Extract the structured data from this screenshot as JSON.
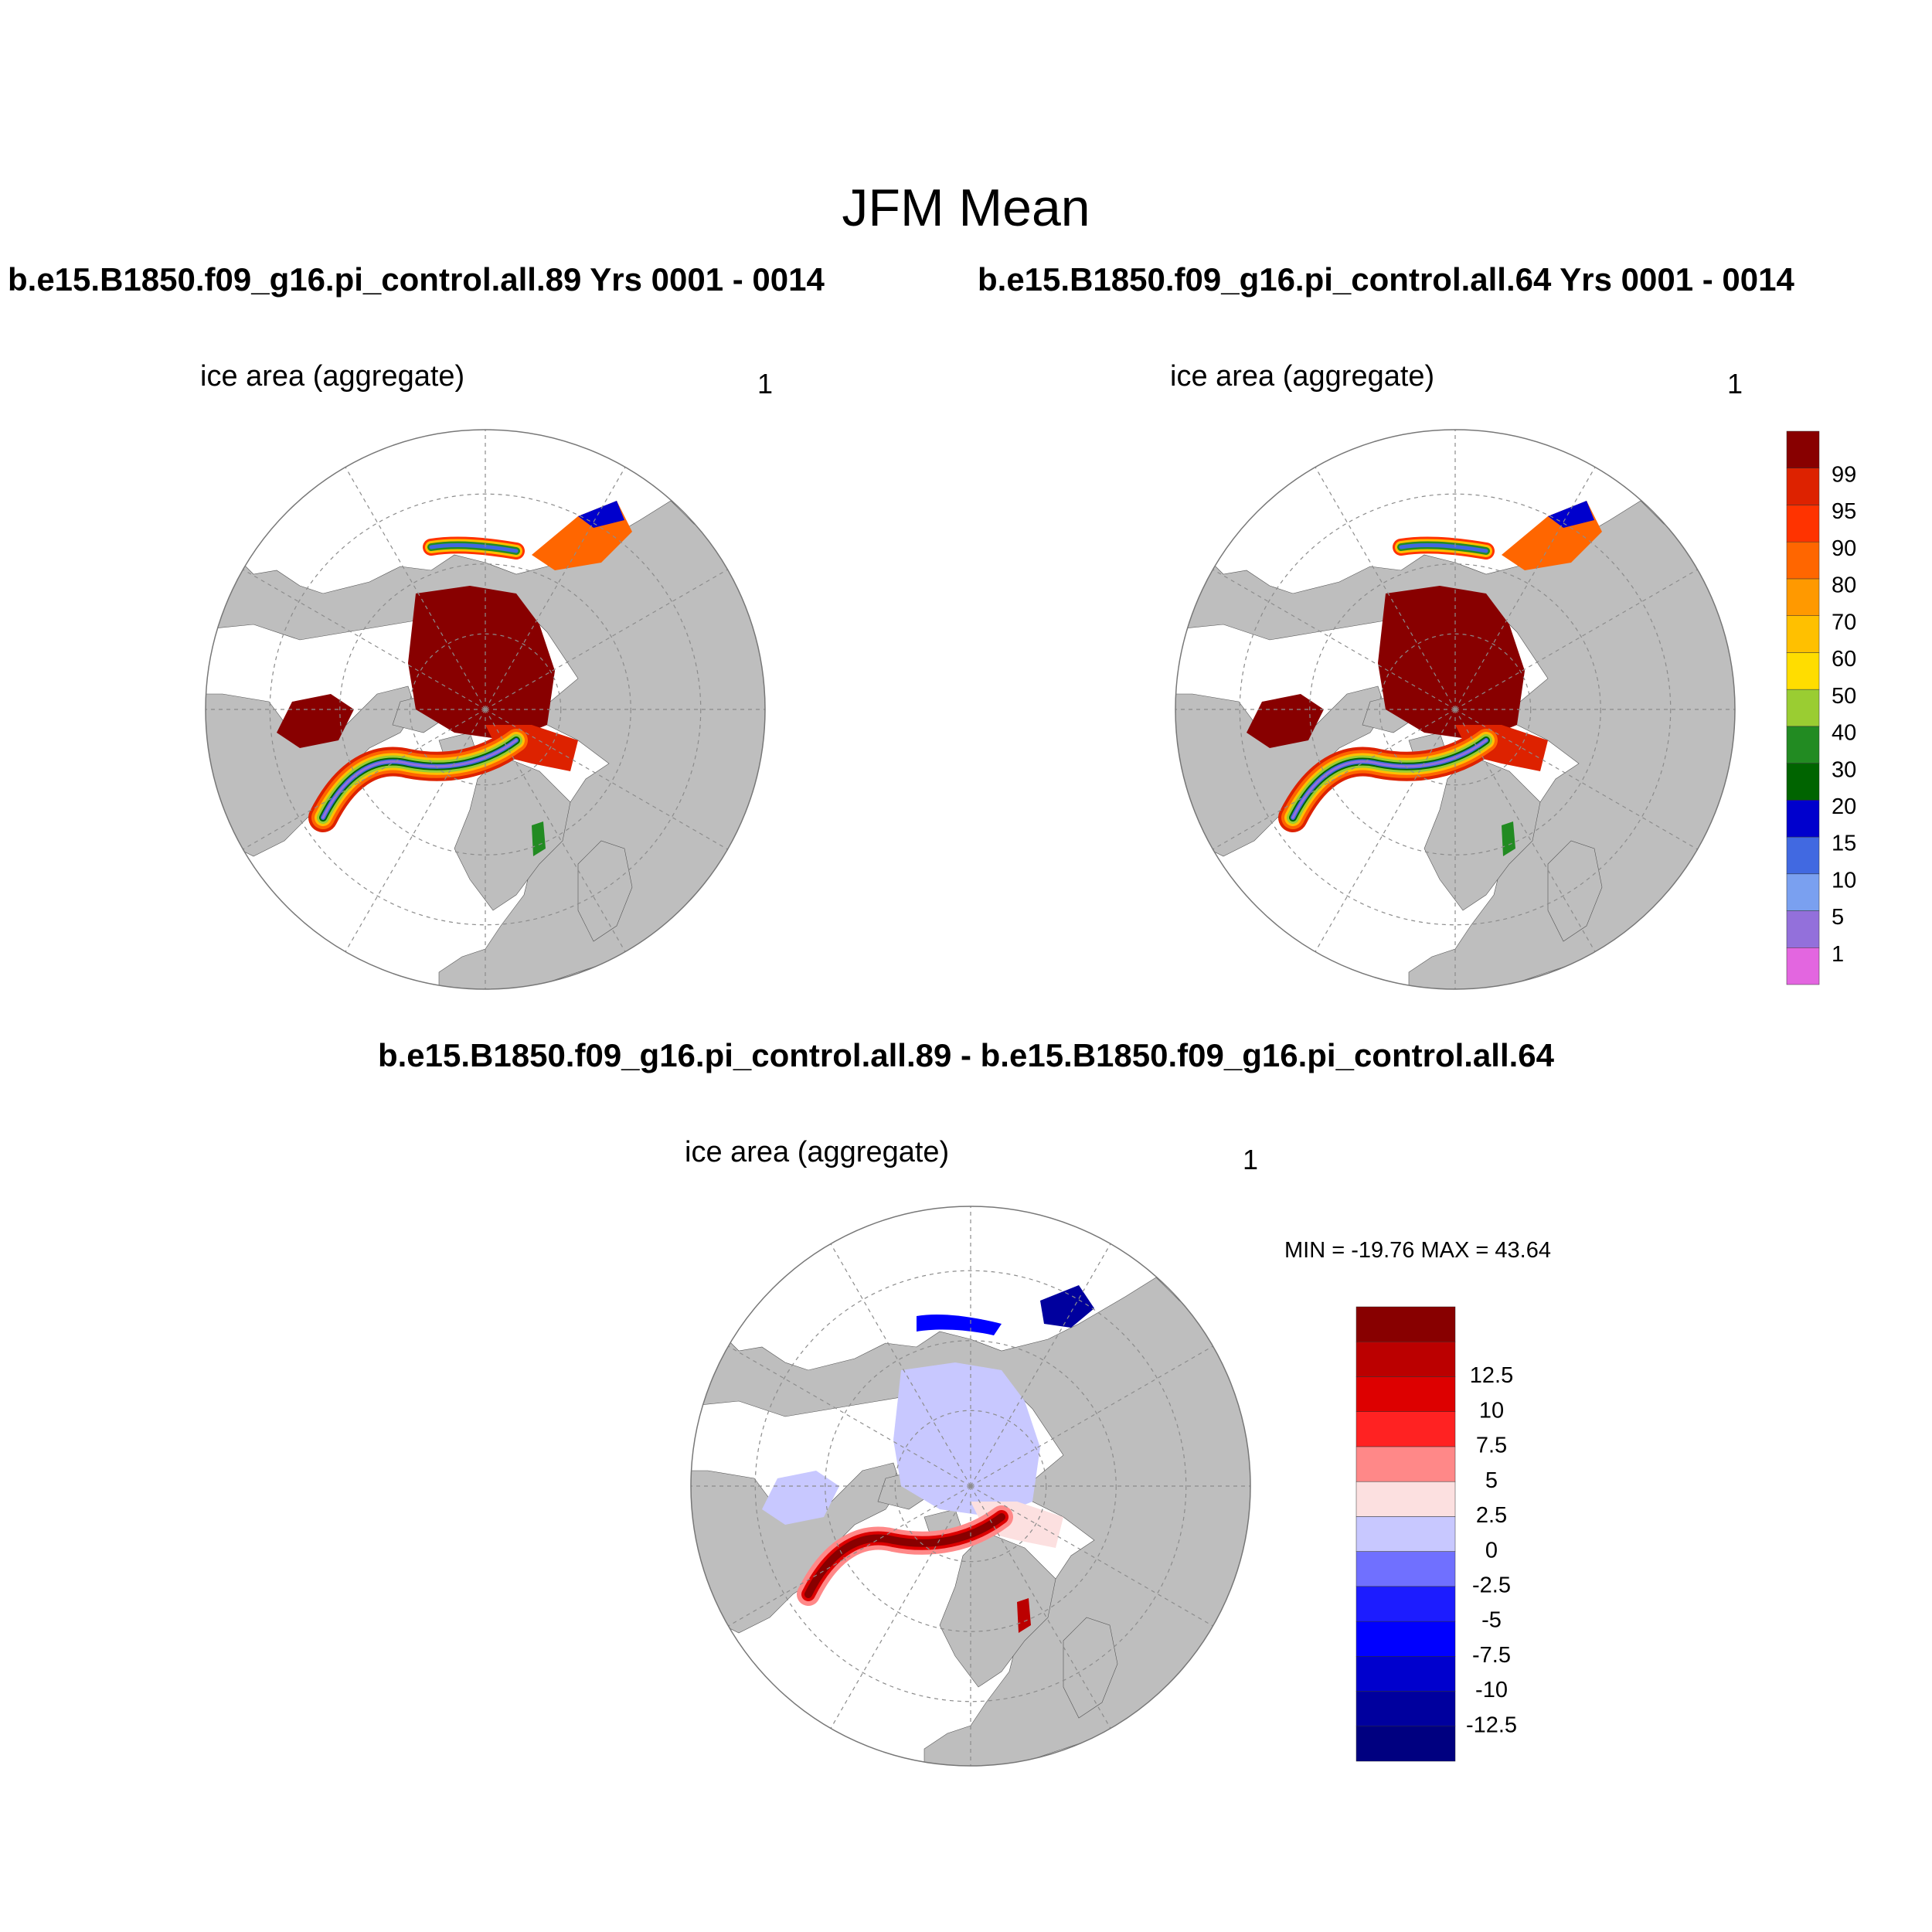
{
  "figure": {
    "title": "JFM Mean",
    "difference_title": "b.e15.B1850.f09_g16.pi_control.all.89 - b.e15.B1850.f09_g16.pi_control.all.64",
    "min_max_text": "MIN = -19.76 MAX =  43.64"
  },
  "panels": [
    {
      "case_title": "b.e15.B1850.f09_g16.pi_control.all.89  Yrs 0001 - 0014",
      "variable": "ice area  (aggregate)",
      "units": "1"
    },
    {
      "case_title": "b.e15.B1850.f09_g16.pi_control.all.64  Yrs 0001 - 0014",
      "variable": "ice area  (aggregate)",
      "units": "1"
    },
    {
      "case_title": "",
      "variable": "ice area  (aggregate)",
      "units": "1"
    }
  ],
  "colors": {
    "land": "#bebebe",
    "ocean": "#ffffff",
    "grid": "#8c8c8c",
    "abs_bins": [
      "#e366e0",
      "#9370db",
      "#7aa0f0",
      "#4169e1",
      "#0000cd",
      "#006400",
      "#228b22",
      "#9acd32",
      "#ffdd00",
      "#ffc000",
      "#ff9900",
      "#ff6600",
      "#ff3300",
      "#dd2200",
      "#880000"
    ],
    "diff_bins": [
      "#000080",
      "#00009e",
      "#0000cd",
      "#0000ff",
      "#1c1cff",
      "#7070ff",
      "#c8c8ff",
      "#fce0e0",
      "#ff8888",
      "#ff2222",
      "#dd0000",
      "#bb0000",
      "#880000"
    ]
  },
  "chart_data": [
    {
      "type": "heatmap",
      "projection": "north polar stereographic",
      "title": "b.e15.B1850.f09_g16.pi_control.all.89  Yrs 0001 - 0014",
      "variable": "ice area  (aggregate)",
      "units": "1",
      "colorbar_levels": [
        1,
        5,
        10,
        15,
        20,
        30,
        40,
        50,
        60,
        70,
        80,
        90,
        95,
        99
      ],
      "colorbar_labels": [
        "1",
        "5",
        "10",
        "15",
        "20",
        "30",
        "40",
        "50",
        "60",
        "70",
        "80",
        "90",
        "95",
        "99"
      ]
    },
    {
      "type": "heatmap",
      "projection": "north polar stereographic",
      "title": "b.e15.B1850.f09_g16.pi_control.all.64  Yrs 0001 - 0014",
      "variable": "ice area  (aggregate)",
      "units": "1",
      "colorbar_levels": [
        1,
        5,
        10,
        15,
        20,
        30,
        40,
        50,
        60,
        70,
        80,
        90,
        95,
        99
      ],
      "colorbar_labels": [
        "1",
        "5",
        "10",
        "15",
        "20",
        "30",
        "40",
        "50",
        "60",
        "70",
        "80",
        "90",
        "95",
        "99"
      ]
    },
    {
      "type": "heatmap",
      "projection": "north polar stereographic",
      "title": "b.e15.B1850.f09_g16.pi_control.all.89 - b.e15.B1850.f09_g16.pi_control.all.64",
      "variable": "ice area  (aggregate)",
      "units": "1",
      "min": -19.76,
      "max": 43.64,
      "colorbar_levels": [
        -12.5,
        -10,
        -7.5,
        -5,
        -2.5,
        0,
        2.5,
        5,
        7.5,
        10,
        12.5
      ],
      "colorbar_labels": [
        "-12.5",
        "-10",
        "-7.5",
        "-5",
        "-2.5",
        "0",
        "2.5",
        "5",
        "7.5",
        "10",
        "12.5"
      ]
    }
  ]
}
